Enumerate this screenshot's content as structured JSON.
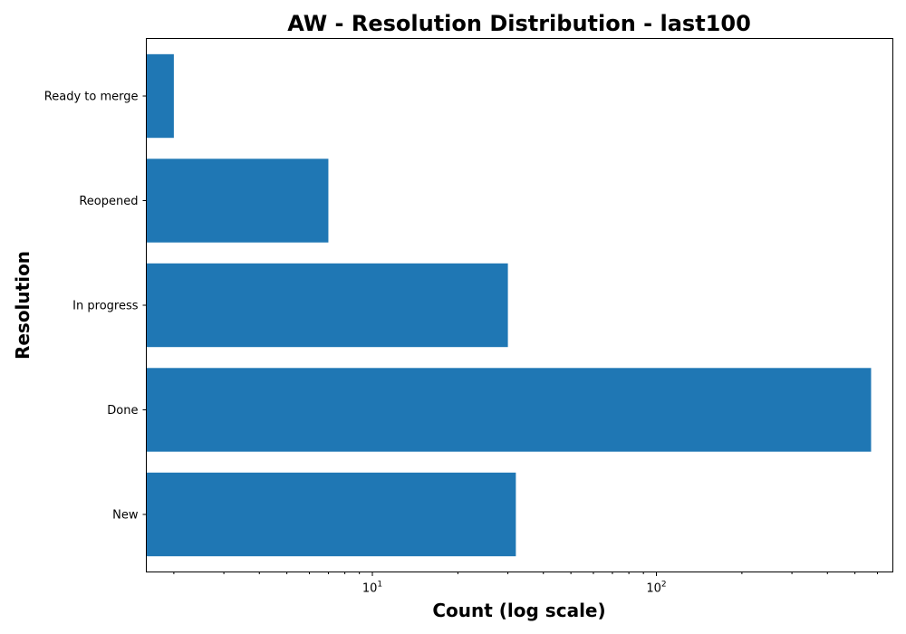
{
  "chart_data": {
    "type": "bar",
    "orientation": "horizontal",
    "title": "AW - Resolution Distribution - last100",
    "xlabel": "Count (log scale)",
    "ylabel": "Resolution",
    "x_scale": "log",
    "xlim": [
      1.6,
      680
    ],
    "categories": [
      "New",
      "Done",
      "In progress",
      "Reopened",
      "Ready to merge"
    ],
    "values": [
      32,
      570,
      30,
      7,
      2
    ],
    "x_major_ticks": [
      10,
      100
    ],
    "x_major_tick_labels": [
      {
        "base": "10",
        "exp": "1"
      },
      {
        "base": "10",
        "exp": "2"
      }
    ],
    "bar_color": "#1f77b4",
    "grid": false,
    "legend": "none"
  }
}
